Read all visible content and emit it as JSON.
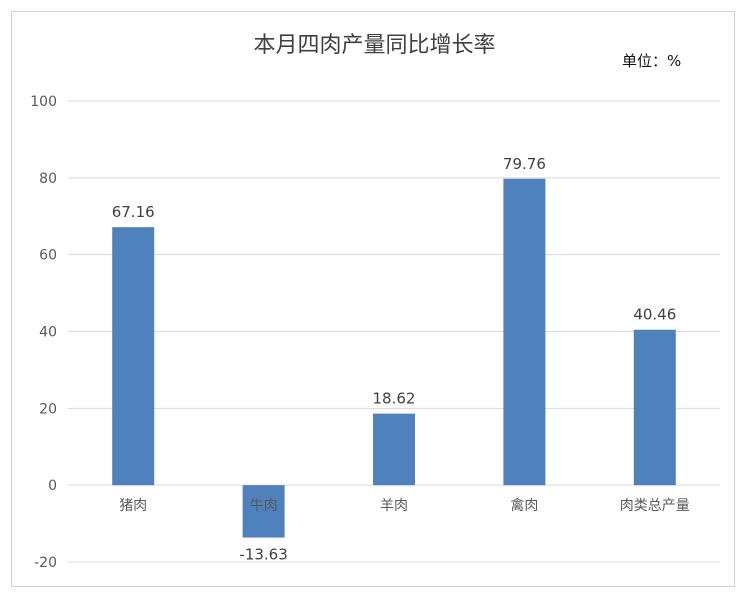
{
  "chart_data": {
    "type": "bar",
    "title": "本月四肉产量同比增长率",
    "unit_label": "单位：%",
    "categories": [
      "猪肉",
      "牛肉",
      "羊肉",
      "禽肉",
      "肉类总产量"
    ],
    "values": [
      67.16,
      -13.63,
      18.62,
      79.76,
      40.46
    ],
    "data_labels": [
      "67.16",
      "-13.63",
      "18.62",
      "79.76",
      "40.46"
    ],
    "ylim": [
      -20,
      100
    ],
    "yticks": [
      "100",
      "80",
      "60",
      "40",
      "20",
      "0",
      "-20"
    ],
    "grid": true,
    "legend": "none",
    "bar_color": "#4f81bd",
    "grid_color": "#d9d9d9"
  }
}
